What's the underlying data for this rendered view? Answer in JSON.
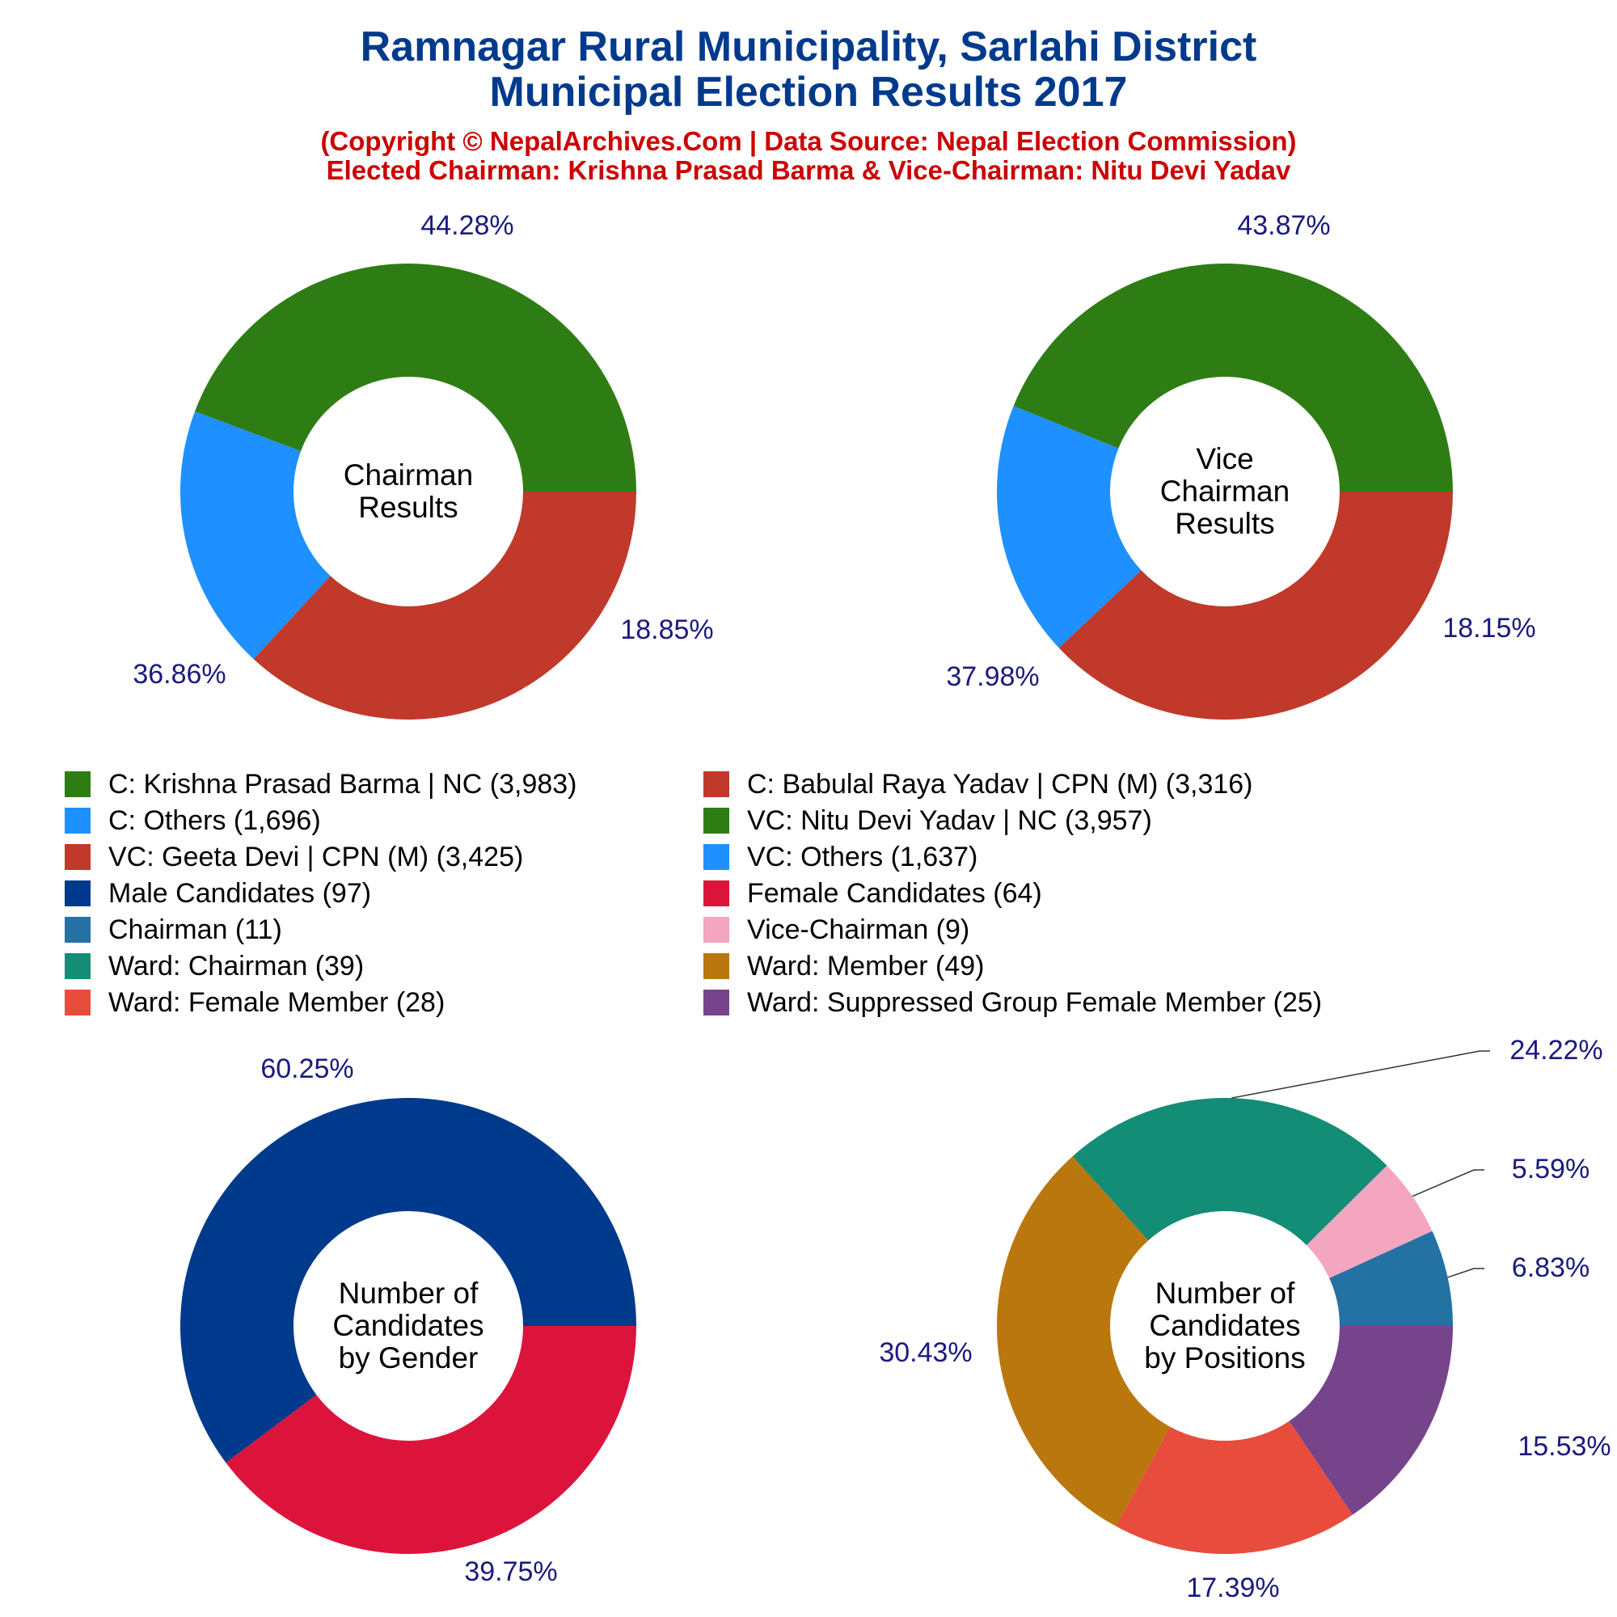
{
  "header": {
    "title_line1": "Ramnagar Rural Municipality, Sarlahi District",
    "title_line2": "Municipal Election Results 2017",
    "sub_line1": "(Copyright © NepalArchives.Com | Data Source: Nepal Election Commission)",
    "sub_line2": "Elected Chairman: Krishna Prasad Barma & Vice-Chairman: Nitu Devi Yadav"
  },
  "chart_data": [
    {
      "type": "pie",
      "center_label": [
        "Chairman",
        "Results"
      ],
      "slices": [
        {
          "label": "C: Krishna Prasad Barma | NC",
          "value": 3983,
          "percent_label": "44.28%",
          "color": "#2e7d14"
        },
        {
          "label": "C: Others",
          "value": 1696,
          "percent_label": "18.85%",
          "color": "#1e90ff"
        },
        {
          "label": "C: Babulal Raya Yadav | CPN (M)",
          "value": 3316,
          "percent_label": "36.86%",
          "color": "#c0392b"
        }
      ]
    },
    {
      "type": "pie",
      "center_label": [
        "Vice",
        "Chairman",
        "Results"
      ],
      "slices": [
        {
          "label": "VC: Nitu Devi Yadav | NC",
          "value": 3957,
          "percent_label": "43.87%",
          "color": "#2e7d14"
        },
        {
          "label": "VC: Others",
          "value": 1637,
          "percent_label": "18.15%",
          "color": "#1e90ff"
        },
        {
          "label": "VC: Geeta Devi | CPN (M)",
          "value": 3425,
          "percent_label": "37.98%",
          "color": "#c0392b"
        }
      ]
    },
    {
      "type": "pie",
      "center_label": [
        "Number of",
        "Candidates",
        "by Gender"
      ],
      "slices": [
        {
          "label": "Male Candidates",
          "value": 97,
          "percent_label": "60.25%",
          "color": "#003a8c"
        },
        {
          "label": "Female Candidates",
          "value": 64,
          "percent_label": "39.75%",
          "color": "#dc143c"
        }
      ]
    },
    {
      "type": "pie",
      "center_label": [
        "Number of",
        "Candidates",
        "by Positions"
      ],
      "slices": [
        {
          "label": "Chairman",
          "value": 11,
          "percent_label": "6.83%",
          "color": "#2471a3"
        },
        {
          "label": "Vice-Chairman",
          "value": 9,
          "percent_label": "5.59%",
          "color": "#f4a6c0"
        },
        {
          "label": "Ward: Chairman",
          "value": 39,
          "percent_label": "24.22%",
          "color": "#138d75"
        },
        {
          "label": "Ward: Member",
          "value": 49,
          "percent_label": "30.43%",
          "color": "#b9770e"
        },
        {
          "label": "Ward: Female Member",
          "value": 28,
          "percent_label": "17.39%",
          "color": "#e74c3c"
        },
        {
          "label": "Ward: Suppressed Group Female Member",
          "value": 25,
          "percent_label": "15.53%",
          "color": "#76448a"
        }
      ]
    }
  ],
  "legend": [
    {
      "text": "C: Krishna Prasad Barma | NC (3,983)",
      "color": "#2e7d14"
    },
    {
      "text": "C: Babulal Raya Yadav | CPN (M) (3,316)",
      "color": "#c0392b"
    },
    {
      "text": "C: Others (1,696)",
      "color": "#1e90ff"
    },
    {
      "text": "VC: Nitu Devi Yadav | NC (3,957)",
      "color": "#2e7d14"
    },
    {
      "text": "VC: Geeta Devi | CPN (M) (3,425)",
      "color": "#c0392b"
    },
    {
      "text": "VC: Others (1,637)",
      "color": "#1e90ff"
    },
    {
      "text": "Male Candidates (97)",
      "color": "#003a8c"
    },
    {
      "text": "Female Candidates (64)",
      "color": "#dc143c"
    },
    {
      "text": "Chairman (11)",
      "color": "#2471a3"
    },
    {
      "text": "Vice-Chairman (9)",
      "color": "#f4a6c0"
    },
    {
      "text": "Ward: Chairman (39)",
      "color": "#138d75"
    },
    {
      "text": "Ward: Member (49)",
      "color": "#b9770e"
    },
    {
      "text": "Ward: Female Member (28)",
      "color": "#e74c3c"
    },
    {
      "text": "Ward: Suppressed Group Female Member (25)",
      "color": "#76448a"
    }
  ]
}
